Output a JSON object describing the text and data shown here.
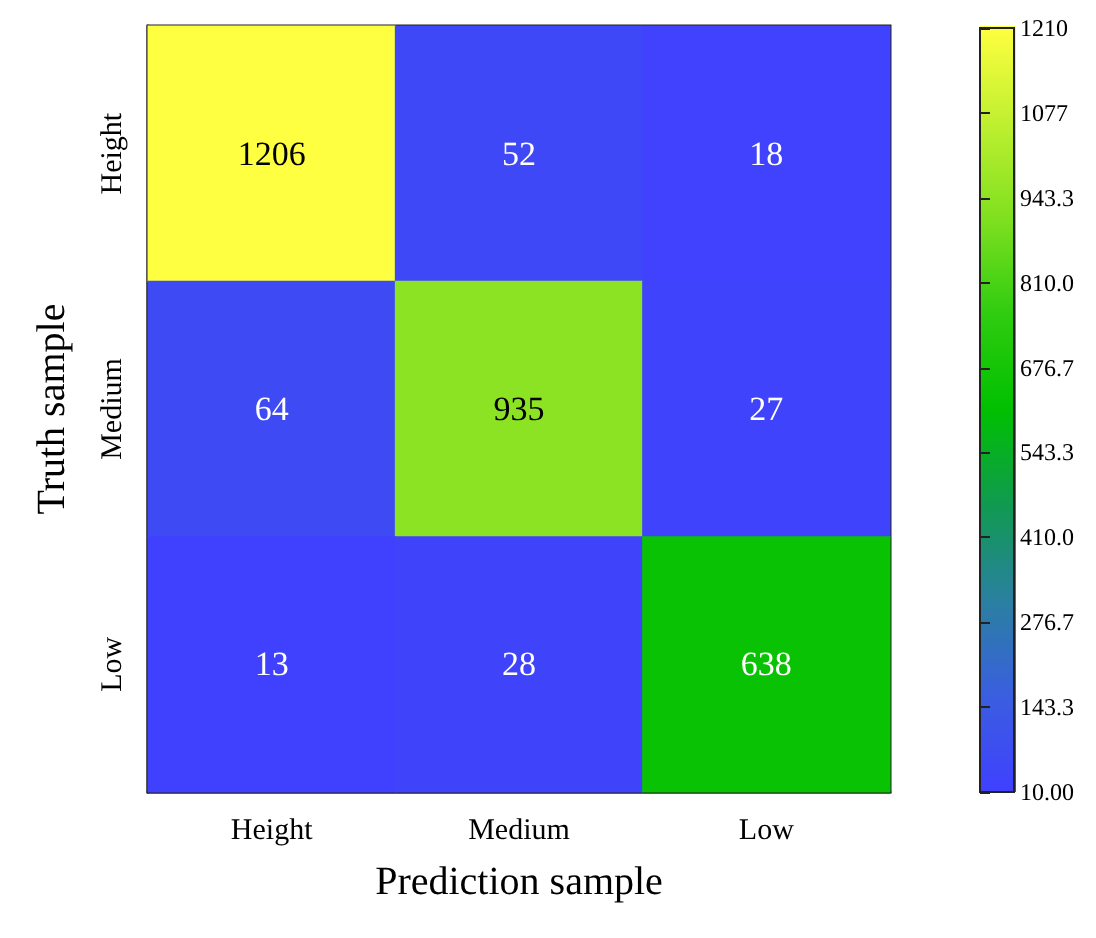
{
  "chart_data": {
    "type": "heatmap",
    "xlabel": "Prediction sample",
    "ylabel": "Truth sample",
    "categories": [
      "Height",
      "Medium",
      "Low"
    ],
    "y_categories": [
      "Height",
      "Medium",
      "Low"
    ],
    "cells": [
      [
        1206,
        52,
        18
      ],
      [
        64,
        935,
        27
      ],
      [
        13,
        28,
        638
      ]
    ],
    "data_labels": true,
    "clim": [
      10,
      1210
    ],
    "cticks": [
      {
        "value": 10,
        "label": "10.00"
      },
      {
        "value": 143.3,
        "label": "143.3"
      },
      {
        "value": 276.7,
        "label": "276.7"
      },
      {
        "value": 410,
        "label": "410.0"
      },
      {
        "value": 543.3,
        "label": "543.3"
      },
      {
        "value": 676.7,
        "label": "676.7"
      },
      {
        "value": 810,
        "label": "810.0"
      },
      {
        "value": 943.3,
        "label": "943.3"
      },
      {
        "value": 1076.7,
        "label": "1077"
      },
      1210
    ]
  }
}
